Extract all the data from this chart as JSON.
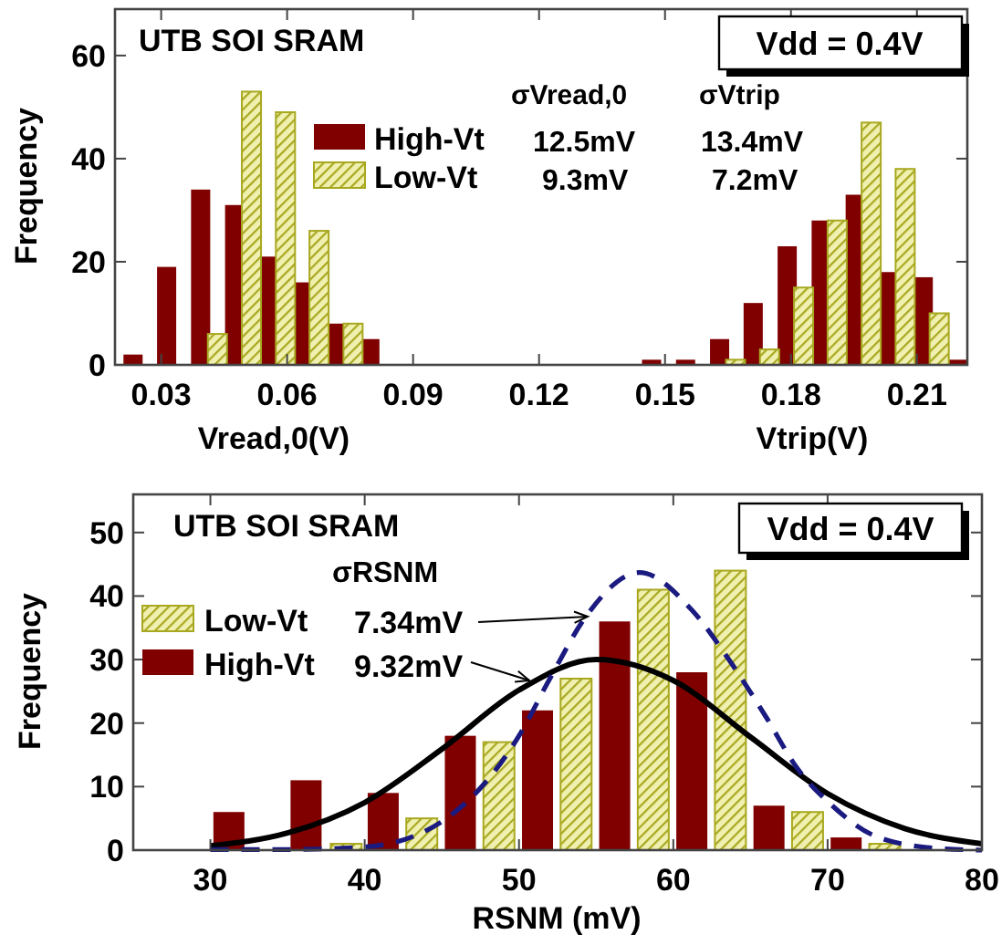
{
  "chart_data": [
    {
      "type": "bar",
      "xlabel": "Vread,0(V)",
      "ylabel": "Frequency",
      "xlim": [
        0.019,
        0.222
      ],
      "xticks": [
        0.03,
        0.06,
        0.09,
        0.12,
        0.15,
        0.18,
        0.21
      ],
      "ylim": [
        0,
        69
      ],
      "yticks": [
        0,
        20,
        40,
        60
      ],
      "grid": false,
      "legend": "top",
      "annotations": [
        "UTB SOI SRAM",
        "Vdd = 0.4V",
        "σVread,0",
        "σVtrip",
        "12.5mV",
        "13.4mV",
        "9.3mV",
        "7.2mV",
        "Vtrip(V)"
      ],
      "series": [
        {
          "name": "High-Vt",
          "color": "#800000",
          "x": [
            0.0233,
            0.0313,
            0.0394,
            0.0475,
            0.0556,
            0.0635,
            0.0716,
            0.0797,
            0.1468,
            0.1549,
            0.163,
            0.171,
            0.1791,
            0.1872,
            0.1953,
            0.2034,
            0.2115,
            0.2196
          ],
          "values": [
            2,
            19,
            34,
            31,
            21,
            16,
            8,
            5,
            1,
            1,
            5,
            12,
            23,
            28,
            33,
            18,
            17,
            1
          ]
        },
        {
          "name": "Low-Vt",
          "color": "#a8a820",
          "x": [
            0.0434,
            0.0515,
            0.0596,
            0.0676,
            0.0757,
            0.1668,
            0.1749,
            0.183,
            0.191,
            0.1991,
            0.2072,
            0.2153
          ],
          "values": [
            6,
            53,
            49,
            26,
            8,
            1,
            3,
            15,
            28,
            47,
            38,
            10
          ]
        }
      ]
    },
    {
      "type": "bar",
      "xlabel": "RSNM (mV)",
      "ylabel": "Frequency",
      "xlim": [
        25,
        80
      ],
      "xticks": [
        30,
        40,
        50,
        60,
        70,
        80
      ],
      "ylim": [
        0,
        56
      ],
      "yticks": [
        0,
        10,
        20,
        30,
        40,
        50
      ],
      "grid": false,
      "legend": "top left",
      "annotations": [
        "UTB SOI SRAM",
        "Vdd = 0.4V",
        "σRSNM",
        "7.34mV",
        "9.32mV"
      ],
      "series": [
        {
          "name": "Low-Vt",
          "color": "#a8a820",
          "x": [
            38.8,
            43.7,
            48.7,
            53.7,
            58.7,
            63.7,
            68.7,
            73.7
          ],
          "values": [
            1,
            5,
            17,
            27,
            41,
            44,
            6,
            1
          ]
        },
        {
          "name": "High-Vt",
          "color": "#800000",
          "x": [
            31.2,
            36.2,
            41.2,
            46.2,
            51.2,
            56.2,
            61.2,
            66.2,
            71.2
          ],
          "values": [
            6,
            11,
            9,
            18,
            22,
            36,
            28,
            7,
            2
          ]
        },
        {
          "type": "line",
          "color": "#000000",
          "line_style": "solid",
          "x": [
            30,
            35,
            40,
            45,
            50,
            55,
            60,
            65,
            70,
            75,
            80
          ],
          "values": [
            0.7,
            2.7,
            7.5,
            15.9,
            25.2,
            30,
            26.7,
            17.8,
            8.9,
            3.4,
            1.0
          ]
        },
        {
          "type": "line",
          "color": "#1a1a80",
          "line_style": "dashed",
          "x": [
            30,
            35,
            40,
            45,
            50,
            52,
            54.4,
            57.8,
            61.2,
            63.6,
            66,
            68,
            70.3,
            73.1,
            77,
            80
          ],
          "values": [
            0.1,
            0.1,
            0.5,
            4.5,
            18,
            27,
            37,
            43.7,
            37.8,
            30,
            21,
            13,
            7,
            2.2,
            0.3,
            0
          ]
        }
      ]
    }
  ]
}
